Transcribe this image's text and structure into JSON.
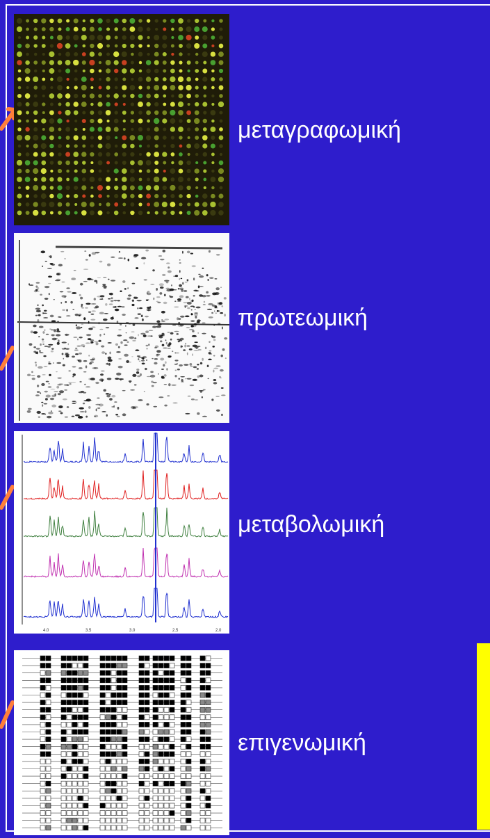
{
  "labels": {
    "transcriptomics": "μεταγραφωμική",
    "proteomics": "πρωτεωμική",
    "metabolomics": "μεταβολωμική",
    "epigenomics": "επιγενωμική"
  },
  "colors": {
    "background": "#2e1dcc",
    "text": "#ffffff",
    "arrow": "#ff7f3a",
    "highlight_box": "#ffff00"
  },
  "nmr_axis_ticks": [
    "4.0",
    "3.5",
    "3.0",
    "2.5",
    "2.0"
  ]
}
